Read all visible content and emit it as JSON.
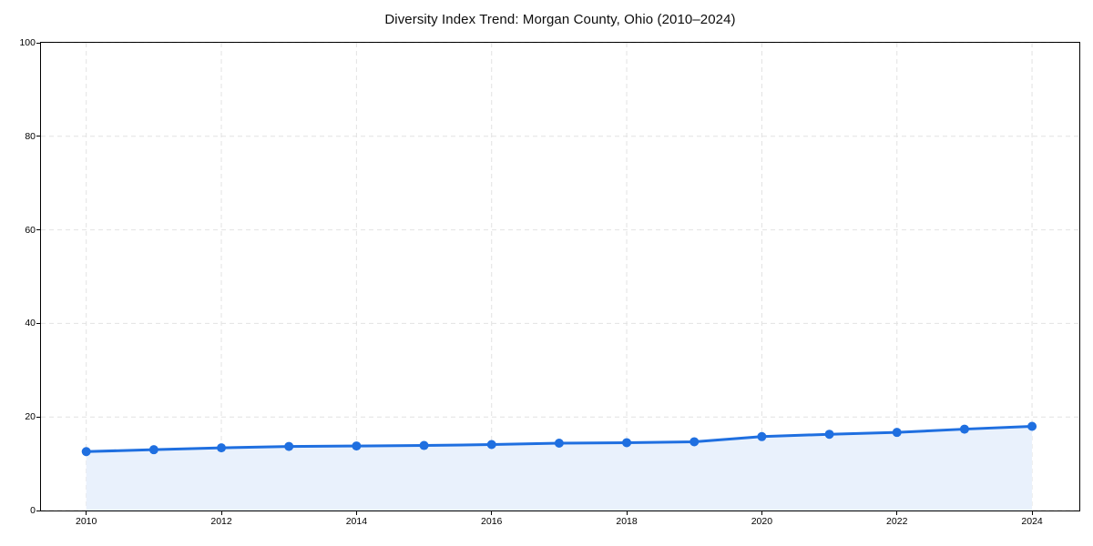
{
  "chart_data": {
    "type": "line",
    "title": "Diversity Index Trend: Morgan County, Ohio (2010–2024)",
    "x": [
      2010,
      2011,
      2012,
      2013,
      2014,
      2015,
      2016,
      2017,
      2018,
      2019,
      2020,
      2021,
      2022,
      2023,
      2024
    ],
    "values": [
      12.6,
      13.0,
      13.4,
      13.7,
      13.8,
      13.9,
      14.1,
      14.4,
      14.5,
      14.7,
      15.8,
      16.3,
      16.7,
      17.4,
      18.0
    ],
    "xlabel": "",
    "ylabel": "",
    "xlim": [
      2009.33,
      2024.7
    ],
    "ylim": [
      0,
      100
    ],
    "x_ticks": [
      2010,
      2012,
      2014,
      2016,
      2018,
      2020,
      2022,
      2024
    ],
    "y_ticks": [
      0,
      20,
      40,
      60,
      80,
      100
    ],
    "grid": true,
    "grid_style": "dashed",
    "legend": false,
    "marker": "circle",
    "area_fill": true
  },
  "colors": {
    "line": "#1f6fe0",
    "marker": "#1f6fe0",
    "area_fill": "#e9f1fc",
    "grid": "#e2e2e2",
    "axis": "#000000",
    "background": "#ffffff",
    "text": "#000000"
  }
}
